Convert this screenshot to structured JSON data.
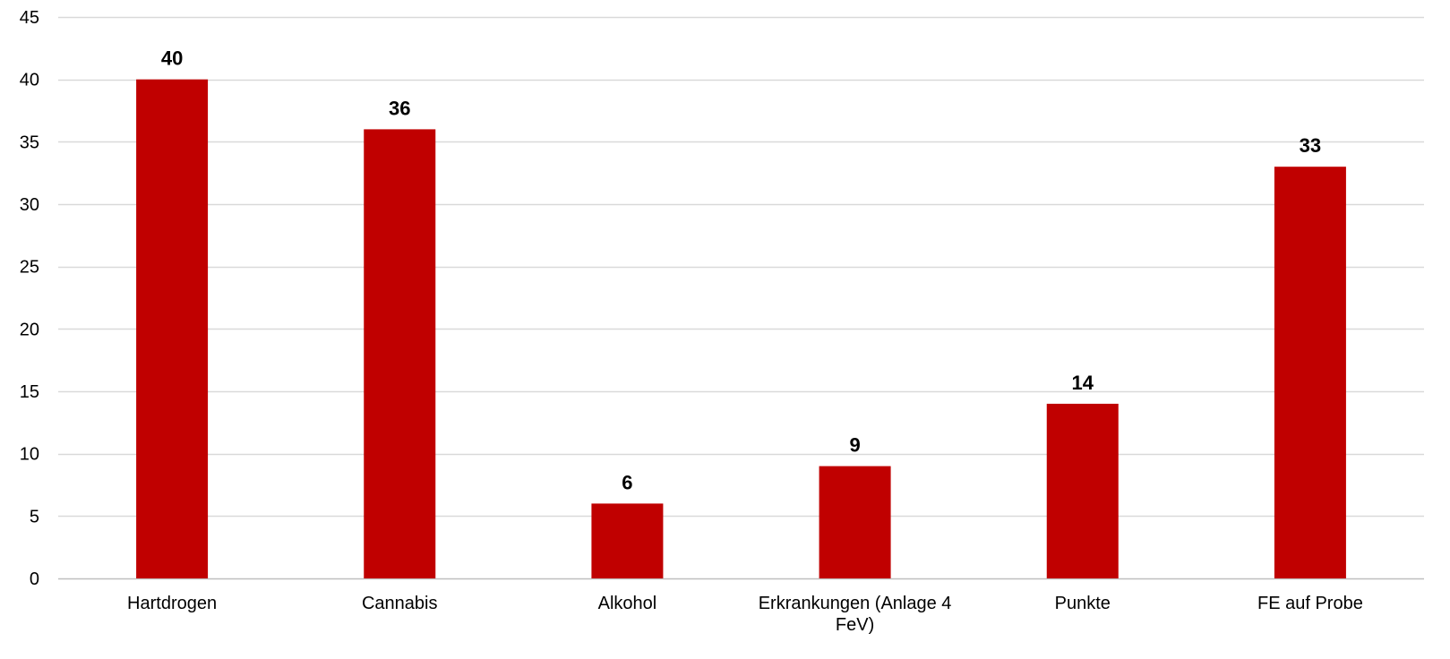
{
  "chart_data": {
    "type": "bar",
    "categories": [
      [
        "Hartdrogen"
      ],
      [
        "Cannabis"
      ],
      [
        "Alkohol"
      ],
      [
        "Erkrankungen (Anlage 4",
        "FeV)"
      ],
      [
        "Punkte"
      ],
      [
        "FE auf Probe"
      ]
    ],
    "values": [
      40,
      36,
      6,
      9,
      14,
      33
    ],
    "ylim": [
      0,
      45
    ],
    "yticks": [
      0,
      5,
      10,
      15,
      20,
      25,
      30,
      35,
      40,
      45
    ],
    "grid": true,
    "data_labels": true,
    "colors": {
      "bar": "#C00000",
      "grid": "#D9D9D9",
      "axis": "#BFBFBF",
      "text": "#000000"
    }
  }
}
